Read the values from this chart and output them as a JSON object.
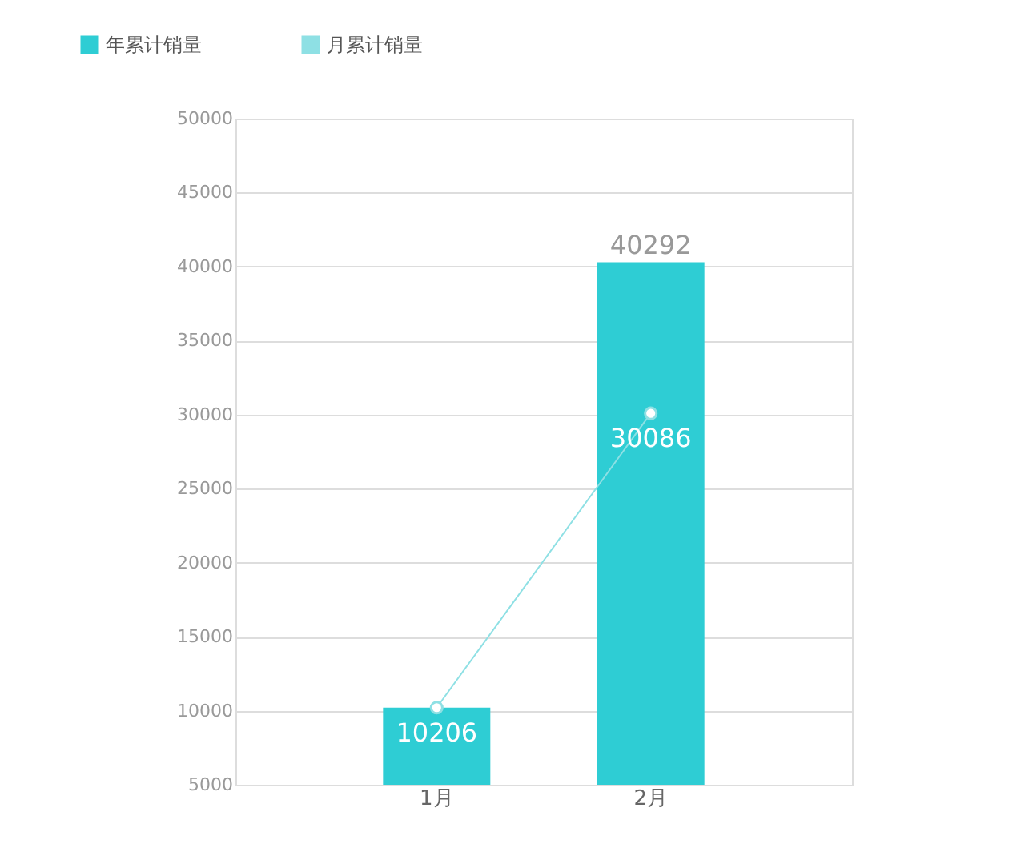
{
  "chart_data": {
    "type": "bar",
    "categories": [
      "1月",
      "2月"
    ],
    "series": [
      {
        "name": "年累计销量",
        "color": "#2ecdd4",
        "values": [
          10206,
          40292
        ],
        "value_labels": [
          null,
          "40292"
        ]
      },
      {
        "name": "月累计销量",
        "type": "line",
        "color": "#8ee0e4",
        "values": [
          10206,
          30086
        ],
        "value_labels": [
          "10206",
          "30086"
        ],
        "marker": "circle"
      }
    ],
    "ylim": [
      5000,
      50000
    ],
    "yticks": [
      5000,
      10000,
      15000,
      20000,
      25000,
      30000,
      35000,
      40000,
      45000,
      50000
    ],
    "grid": "y",
    "legend": "top left"
  }
}
